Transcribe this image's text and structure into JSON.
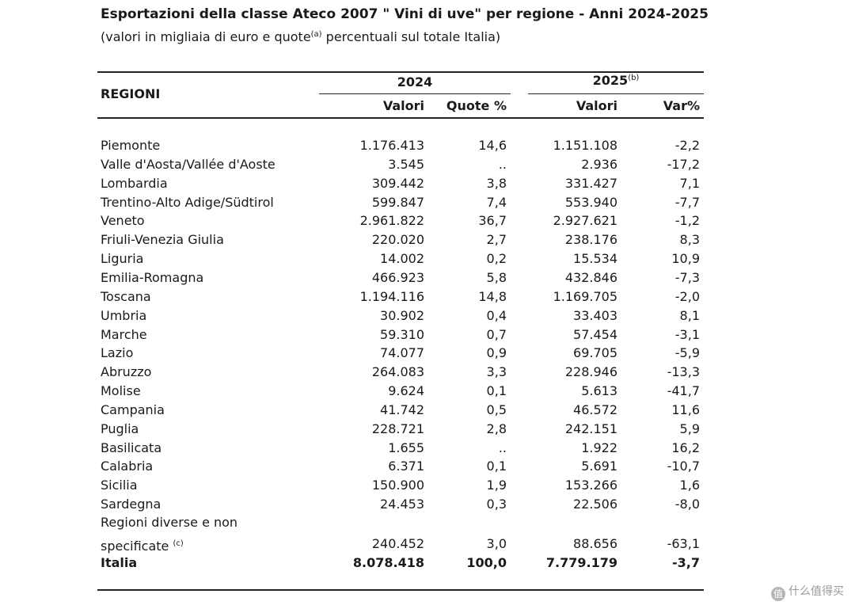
{
  "title": "Esportazioni della classe Ateco 2007 \" Vini di uve\" per regione - Anni 2024-2025",
  "subtitle": {
    "before": "(valori in migliaia di euro e quote",
    "sup": "(a)",
    "after": " percentuali sul totale Italia)"
  },
  "header": {
    "regioni": "REGIONI",
    "year1": "2024",
    "year2": "2025",
    "year2_sup": "(b)",
    "valori": "Valori",
    "quote": "Quote %",
    "valori2": "Valori",
    "var": "Var%"
  },
  "rows": [
    {
      "region": "Piemonte",
      "v2024": "1.176.413",
      "quote": "14,6",
      "v2025": "1.151.108",
      "var": "-2,2"
    },
    {
      "region": "Valle d'Aosta/Vallée d'Aoste",
      "v2024": "3.545",
      "quote": "..",
      "v2025": "2.936",
      "var": "-17,2"
    },
    {
      "region": "Lombardia",
      "v2024": "309.442",
      "quote": "3,8",
      "v2025": "331.427",
      "var": "7,1"
    },
    {
      "region": "Trentino-Alto Adige/Südtirol",
      "v2024": "599.847",
      "quote": "7,4",
      "v2025": "553.940",
      "var": "-7,7"
    },
    {
      "region": "Veneto",
      "v2024": "2.961.822",
      "quote": "36,7",
      "v2025": "2.927.621",
      "var": "-1,2"
    },
    {
      "region": "Friuli-Venezia Giulia",
      "v2024": "220.020",
      "quote": "2,7",
      "v2025": "238.176",
      "var": "8,3"
    },
    {
      "region": "Liguria",
      "v2024": "14.002",
      "quote": "0,2",
      "v2025": "15.534",
      "var": "10,9"
    },
    {
      "region": "Emilia-Romagna",
      "v2024": "466.923",
      "quote": "5,8",
      "v2025": "432.846",
      "var": "-7,3"
    },
    {
      "region": "Toscana",
      "v2024": "1.194.116",
      "quote": "14,8",
      "v2025": "1.169.705",
      "var": "-2,0"
    },
    {
      "region": "Umbria",
      "v2024": "30.902",
      "quote": "0,4",
      "v2025": "33.403",
      "var": "8,1"
    },
    {
      "region": "Marche",
      "v2024": "59.310",
      "quote": "0,7",
      "v2025": "57.454",
      "var": "-3,1"
    },
    {
      "region": "Lazio",
      "v2024": "74.077",
      "quote": "0,9",
      "v2025": "69.705",
      "var": "-5,9"
    },
    {
      "region": "Abruzzo",
      "v2024": "264.083",
      "quote": "3,3",
      "v2025": "228.946",
      "var": "-13,3"
    },
    {
      "region": "Molise",
      "v2024": "9.624",
      "quote": "0,1",
      "v2025": "5.613",
      "var": "-41,7"
    },
    {
      "region": "Campania",
      "v2024": "41.742",
      "quote": "0,5",
      "v2025": "46.572",
      "var": "11,6"
    },
    {
      "region": "Puglia",
      "v2024": "228.721",
      "quote": "2,8",
      "v2025": "242.151",
      "var": "5,9"
    },
    {
      "region": "Basilicata",
      "v2024": "1.655",
      "quote": "..",
      "v2025": "1.922",
      "var": "16,2"
    },
    {
      "region": "Calabria",
      "v2024": "6.371",
      "quote": "0,1",
      "v2025": "5.691",
      "var": "-10,7"
    },
    {
      "region": "Sicilia",
      "v2024": "150.900",
      "quote": "1,9",
      "v2025": "153.266",
      "var": "1,6"
    },
    {
      "region": "Sardegna",
      "v2024": "24.453",
      "quote": "0,3",
      "v2025": "22.506",
      "var": "-8,0"
    }
  ],
  "other": {
    "line1": "Regioni diverse e non",
    "line2": "specificate",
    "sup": "(c)",
    "v2024": "240.452",
    "quote": "3,0",
    "v2025": "88.656",
    "var": "-63,1"
  },
  "total": {
    "region": "Italia",
    "v2024": "8.078.418",
    "quote": "100,0",
    "v2025": "7.779.179",
    "var": "-3,7"
  },
  "watermark": {
    "logo": "值",
    "text": "什么值得买"
  }
}
